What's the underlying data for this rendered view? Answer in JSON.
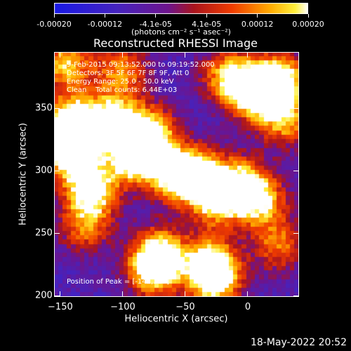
{
  "colorbar": {
    "ticks": [
      "-0.00020",
      "-0.00012",
      "-4.1e-05",
      "4.1e-05",
      "0.00012",
      "0.00020"
    ],
    "units": "(photons cm⁻² s⁻¹ asec⁻²)"
  },
  "chart_data": {
    "type": "heatmap",
    "title": "Reconstructed RHESSI Image",
    "xlabel": "Heliocentric X (arcsec)",
    "ylabel": "Heliocentric Y (arcsec)",
    "xlim": [
      -155,
      41
    ],
    "ylim": [
      199,
      395
    ],
    "x_ticks": [
      "-150",
      "-100",
      "-50",
      "0"
    ],
    "y_ticks": [
      "200",
      "250",
      "300",
      "350"
    ],
    "value_range": [
      -0.0002,
      0.0002
    ],
    "colormap": "rainbow-to-yellow",
    "peak": [
      -142,
      317
    ],
    "annotations": {
      "time_range": "9-Feb-2015 09:13:52.000 to 09:19:52.000",
      "detectors": "Detectors: 3F 5F 6F 7F 8F 9F, Att 0",
      "energy": "Energy Range: 25.0 - 50.0 keV",
      "clean": "Clean    Total counts: 6.44E+03",
      "peak_text": "Position of Peak = [-142,317]"
    },
    "hotspots": [
      {
        "x": -142,
        "y": 317,
        "v": 1.0
      },
      {
        "x": -140,
        "y": 338,
        "v": 0.85
      },
      {
        "x": -108,
        "y": 340,
        "v": 0.75
      },
      {
        "x": -90,
        "y": 312,
        "v": 0.85
      },
      {
        "x": -78,
        "y": 330,
        "v": 0.7
      },
      {
        "x": -125,
        "y": 285,
        "v": 0.8
      },
      {
        "x": -60,
        "y": 296,
        "v": 0.65
      },
      {
        "x": -40,
        "y": 298,
        "v": 0.65
      },
      {
        "x": -25,
        "y": 278,
        "v": 0.75
      },
      {
        "x": -5,
        "y": 290,
        "v": 0.55
      },
      {
        "x": 10,
        "y": 275,
        "v": 0.6
      },
      {
        "x": 25,
        "y": 372,
        "v": 0.8
      },
      {
        "x": 5,
        "y": 362,
        "v": 0.75
      },
      {
        "x": -15,
        "y": 375,
        "v": 0.6
      },
      {
        "x": 30,
        "y": 340,
        "v": 0.55
      },
      {
        "x": -130,
        "y": 255,
        "v": 0.45
      },
      {
        "x": -75,
        "y": 220,
        "v": 0.7
      },
      {
        "x": -70,
        "y": 235,
        "v": 0.55
      },
      {
        "x": -30,
        "y": 225,
        "v": 0.75
      },
      {
        "x": -25,
        "y": 210,
        "v": 0.55
      },
      {
        "x": 25,
        "y": 240,
        "v": 0.45
      },
      {
        "x": -145,
        "y": 385,
        "v": 0.6
      },
      {
        "x": -100,
        "y": 380,
        "v": 0.5
      }
    ]
  },
  "timestamp": "18-May-2022 20:52"
}
